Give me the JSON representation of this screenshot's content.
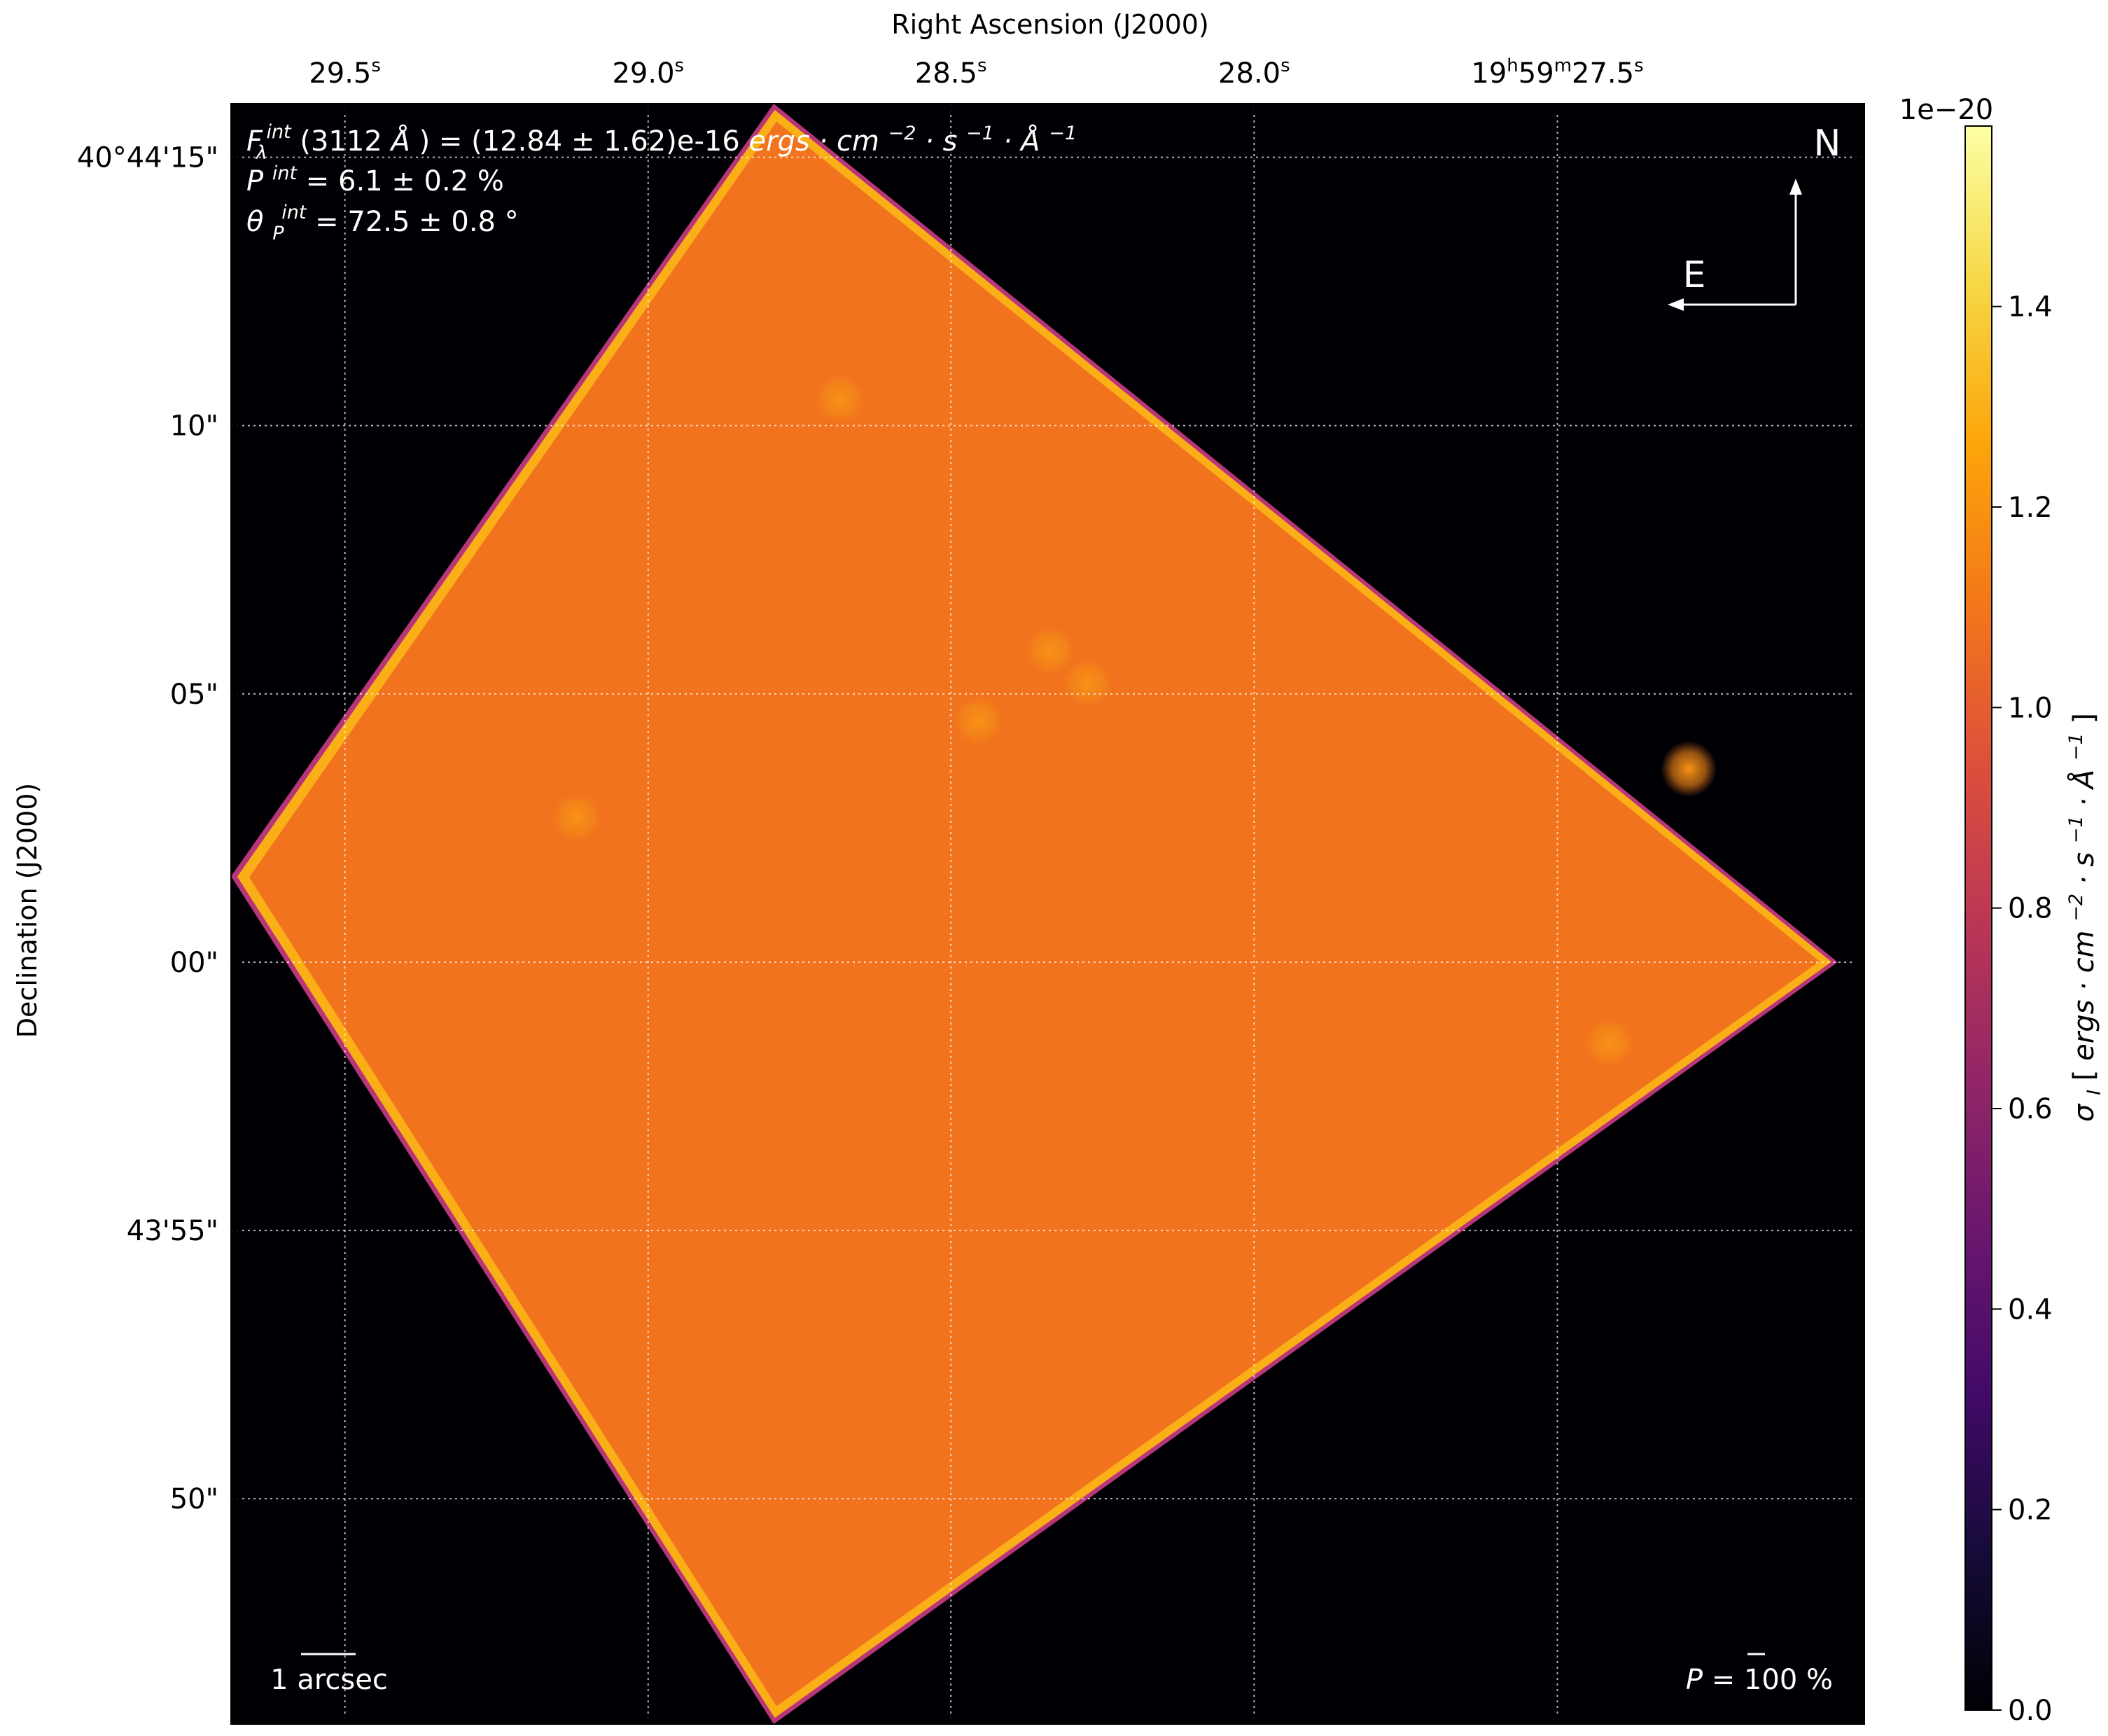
{
  "chart_data": {
    "type": "heatmap",
    "title": "",
    "xlabel": "Right Ascension (J2000)",
    "ylabel": "Declination (J2000)",
    "x_ticks": [
      {
        "arcsec": -8.06,
        "label": "29.5",
        "sup": "s",
        "pre": ""
      },
      {
        "arcsec": -2.36,
        "label": "29.0",
        "sup": "s",
        "pre": ""
      },
      {
        "arcsec": 3.33,
        "label": "28.5",
        "sup": "s",
        "pre": ""
      },
      {
        "arcsec": 9.03,
        "label": "28.0",
        "sup": "s",
        "pre": ""
      },
      {
        "arcsec": 14.73,
        "label": "27.5",
        "sup": "s",
        "pre": "19h59m"
      }
    ],
    "y_ticks": [
      {
        "arcsec": 15,
        "label": "40°44'15\""
      },
      {
        "arcsec": 10,
        "label": "10\""
      },
      {
        "arcsec": 5,
        "label": "05\""
      },
      {
        "arcsec": 0,
        "label": "00\""
      },
      {
        "arcsec": -5,
        "label": "43'55\""
      },
      {
        "arcsec": -10,
        "label": "50\""
      }
    ],
    "x_range_arcsec": [
      -10.2,
      20.5
    ],
    "y_range_arcsec": [
      -14.2,
      16.0
    ],
    "grid": true,
    "colorbar": {
      "label": "σI [ergs · cm⁻² · s⁻¹ · Å⁻¹]",
      "label_parts": [
        "σ",
        "I",
        " [",
        "ergs · cm",
        "−2",
        " · s",
        "−1",
        " · Å",
        "−1",
        "]"
      ],
      "multiplier": "1e−20",
      "ticks": [
        "0.0",
        "0.2",
        "0.4",
        "0.6",
        "0.8",
        "1.0",
        "1.2",
        "1.4"
      ],
      "min": 0.0,
      "max": 1.58,
      "colormap": "inferno"
    },
    "field": {
      "vertices_arcsec": [
        [
          0.0,
          16.0
        ],
        [
          20.0,
          0.0
        ],
        [
          0.0,
          -14.2
        ],
        [
          -10.2,
          1.6
        ]
      ],
      "background_value": 1.12,
      "edge_value": 1.4
    },
    "sources": [
      {
        "x": 3.85,
        "y": 4.5,
        "value": 1.22
      },
      {
        "x": 5.9,
        "y": 5.2,
        "value": 1.2
      },
      {
        "x": 5.2,
        "y": 5.8,
        "value": 1.17
      },
      {
        "x": -3.7,
        "y": 2.7,
        "value": 1.22
      },
      {
        "x": 1.25,
        "y": 10.5,
        "value": 1.2
      },
      {
        "x": 15.7,
        "y": -1.5,
        "value": 1.24
      },
      {
        "x": 17.2,
        "y": 3.6,
        "value": 1.16
      }
    ],
    "annotations": {
      "flux_line": [
        "F",
        "λ",
        "int",
        "(3112 ",
        "Å",
        ") = (12.84 ± 1.62)e-16 ",
        "ergs · cm",
        "−2",
        " · s",
        "−1",
        " · Å",
        "−1"
      ],
      "pol_line": [
        "P",
        "int",
        " = 6.1 ± 0.2 %"
      ],
      "angle_line": [
        "θ",
        "P",
        "int",
        " = 72.5 ± 0.8 °"
      ],
      "north": "N",
      "east": "E",
      "scale_bar": "1 arcsec",
      "pol_scale": [
        "P",
        "= 100 %"
      ]
    }
  },
  "colors": {
    "background": "#000004",
    "field": "#f1731d",
    "edge": "#fbaf17",
    "outer_edge": "#b63679",
    "text_inset": "#ffffff",
    "grid": "#ffffff"
  }
}
